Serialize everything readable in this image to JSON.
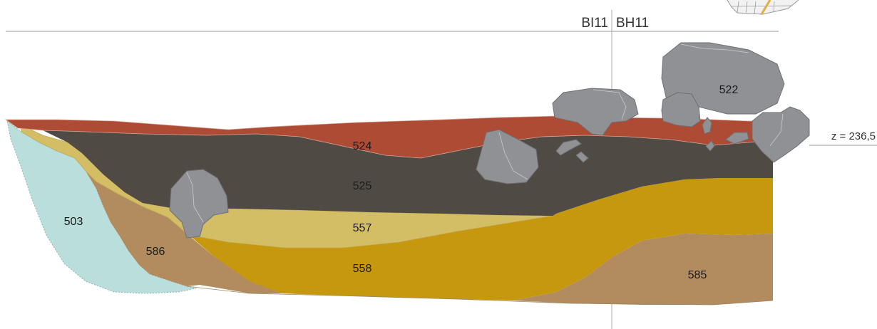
{
  "grid": {
    "left_square": "BI11",
    "right_square": "BH11"
  },
  "elevation": "z = 236,5",
  "layers": [
    {
      "id": "524",
      "color": "#ad4b34"
    },
    {
      "id": "525",
      "color": "#4f4a44"
    },
    {
      "id": "557",
      "color": "#d3bd65"
    },
    {
      "id": "558",
      "color": "#c6980e"
    },
    {
      "id": "585",
      "color": "#b28b5e"
    },
    {
      "id": "586",
      "color": "#b28b5e"
    },
    {
      "id": "503",
      "color": "#b9dedb"
    }
  ],
  "stone_label": "522",
  "colors": {
    "stone": "#8f9194",
    "grid_line": "#999999"
  }
}
